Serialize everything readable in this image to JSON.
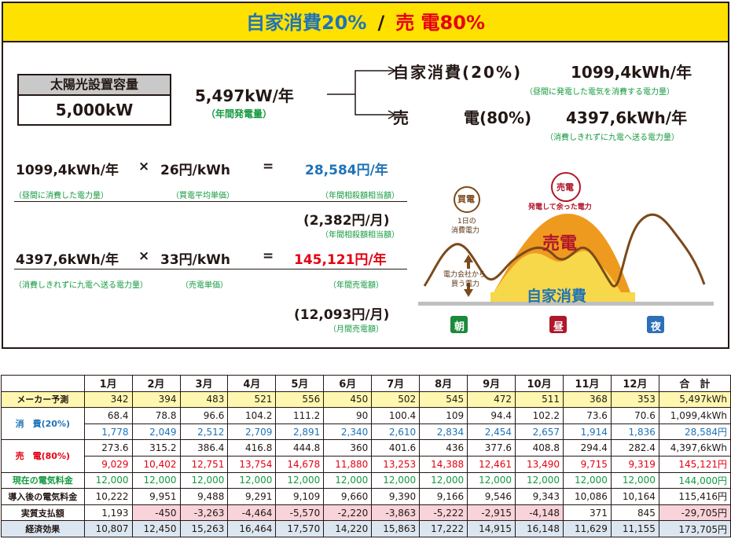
{
  "banner": {
    "left": "自家消費20%",
    "sep": "/",
    "right": "売 電80%"
  },
  "capacity": {
    "label": "太陽光設置容量",
    "value": "5,000kW"
  },
  "annual": {
    "value": "5,497kW/年",
    "note": "（年間発電量）"
  },
  "split": {
    "self": {
      "label": "自家消費(20%)",
      "value": "1099,4kWh/年",
      "note": "（昼間に発電した電気を消費する電力量）"
    },
    "sell": {
      "label1": "売",
      "label2": "電(80%)",
      "value": "4397,6kWh/年",
      "note": "（消費しきれずに九電へ送る電力量）"
    }
  },
  "calc1": {
    "a": "1099,4kWh/年",
    "op": "×",
    "b": "26円/kWh",
    "eq": "=",
    "result": "28,584円/年",
    "a_note": "（昼間に消費した電力量）",
    "b_note": "（買電平均単価）",
    "result_note": "（年間相殺額相当額）",
    "monthly": "(2,382円/月)",
    "monthly_note": "（年間相殺額相当額）"
  },
  "calc2": {
    "a": "4397,6kWh/年",
    "op": "×",
    "b": "33円/kWh",
    "eq": "=",
    "result": "145,121円/年",
    "a_note": "（消費しきれずに九電へ送る電力量）",
    "b_note": "（売電単価）",
    "result_note": "（年間売電額）",
    "monthly": "(12,093円/月)",
    "monthly_note": "（月間売電額）"
  },
  "diagram": {
    "buy_label": "買電",
    "buy_sub1": "1日の",
    "buy_sub2": "消費電力",
    "sell_label": "売電",
    "sell_sub": "発電して余った電力",
    "area_sell": "売電",
    "area_self": "自家消費",
    "grid1": "電力会社から",
    "grid2": "買う電力",
    "morning": "朝",
    "noon": "昼",
    "night": "夜",
    "colors": {
      "orange": "#ee9a1f",
      "yellow": "#f7d84a",
      "curve": "#7b4a1c",
      "green": "#1b8a3a",
      "red": "#b0172a",
      "blue": "#2e6fb7"
    }
  },
  "table": {
    "headers": [
      "",
      "1月",
      "2月",
      "3月",
      "4月",
      "5月",
      "6月",
      "7月",
      "8月",
      "9月",
      "10月",
      "11月",
      "12月",
      "合　計"
    ],
    "maker_label": "メーカー予測",
    "maker": [
      "342",
      "394",
      "483",
      "521",
      "556",
      "450",
      "502",
      "545",
      "472",
      "511",
      "368",
      "353",
      "5,497kWh"
    ],
    "self_label": "消　費(20%)",
    "self_kwh": [
      "68.4",
      "78.8",
      "96.6",
      "104.2",
      "111.2",
      "90",
      "100.4",
      "109",
      "94.4",
      "102.2",
      "73.6",
      "70.6",
      "1,099,4kWh"
    ],
    "self_yen": [
      "1,778",
      "2,049",
      "2,512",
      "2,709",
      "2,891",
      "2,340",
      "2,610",
      "2,834",
      "2,454",
      "2,657",
      "1,914",
      "1,836",
      "28,584円"
    ],
    "sell_label": "売　電(80%)",
    "sell_kwh": [
      "273.6",
      "315.2",
      "386.4",
      "416.8",
      "444.8",
      "360",
      "401.6",
      "436",
      "377.6",
      "408.8",
      "294.4",
      "282.4",
      "4,397,6kWh"
    ],
    "sell_yen": [
      "9,029",
      "10,402",
      "12,751",
      "13,754",
      "14,678",
      "11,880",
      "13,253",
      "14,388",
      "12,461",
      "13,490",
      "9,715",
      "9,319",
      "145,121円"
    ],
    "current_label": "現在の電気料金",
    "current": [
      "12,000",
      "12,000",
      "12,000",
      "12,000",
      "12,000",
      "12,000",
      "12,000",
      "12,000",
      "12,000",
      "12,000",
      "12,000",
      "12,000",
      "144,000円"
    ],
    "after_label": "導入後の電気料金",
    "after": [
      "10,222",
      "9,951",
      "9,488",
      "9,291",
      "9,109",
      "9,660",
      "9,390",
      "9,166",
      "9,546",
      "9,343",
      "10,086",
      "10,164",
      "115,416円"
    ],
    "paid_label": "実質支払額",
    "paid": [
      "1,193",
      "-450",
      "-3,263",
      "-4,464",
      "-5,570",
      "-2,220",
      "-3,863",
      "-5,222",
      "-2,915",
      "-4,148",
      "371",
      "845",
      "-29,705円"
    ],
    "effect_label": "経済効果",
    "effect": [
      "10,807",
      "12,450",
      "15,263",
      "16,464",
      "17,570",
      "14,220",
      "15,863",
      "17,222",
      "14,915",
      "16,148",
      "11,629",
      "11,155",
      "173,705円"
    ]
  }
}
